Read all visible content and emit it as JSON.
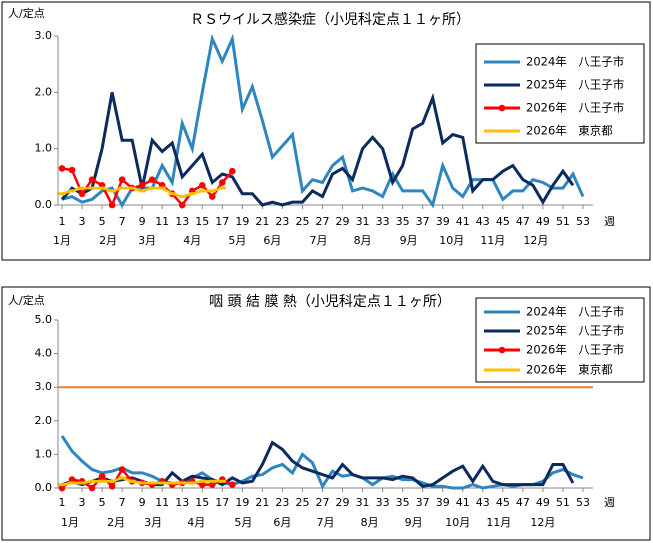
{
  "chart_data": [
    {
      "type": "line",
      "title": "ＲＳウイルス感染症（小児科定点１１ヶ所）",
      "y_label": "人/定点",
      "x_label": "週",
      "x": [
        1,
        2,
        3,
        4,
        5,
        6,
        7,
        8,
        9,
        10,
        11,
        12,
        13,
        14,
        15,
        16,
        17,
        18,
        19,
        20,
        21,
        22,
        23,
        24,
        25,
        26,
        27,
        28,
        29,
        30,
        31,
        32,
        33,
        34,
        35,
        36,
        37,
        38,
        39,
        40,
        41,
        42,
        43,
        44,
        45,
        46,
        47,
        48,
        49,
        50,
        51,
        52,
        53
      ],
      "xlim": [
        0.6,
        54
      ],
      "xticks": [
        1,
        3,
        5,
        7,
        9,
        11,
        13,
        15,
        17,
        19,
        21,
        23,
        25,
        27,
        29,
        31,
        33,
        35,
        37,
        39,
        41,
        43,
        45,
        47,
        49,
        51,
        53
      ],
      "ylim": [
        0,
        3
      ],
      "yticks": [
        {
          "value": 0,
          "label": "0.0"
        },
        {
          "value": 1,
          "label": "1.0"
        },
        {
          "value": 2,
          "label": "2.0"
        },
        {
          "value": 3,
          "label": "3.0"
        }
      ],
      "month_labels": [
        {
          "label": "1月",
          "week": 1
        },
        {
          "label": "2月",
          "week": 5.6
        },
        {
          "label": "3月",
          "week": 9.5
        },
        {
          "label": "4月",
          "week": 14
        },
        {
          "label": "5月",
          "week": 18.5
        },
        {
          "label": "6月",
          "week": 22
        },
        {
          "label": "7月",
          "week": 26.6
        },
        {
          "label": "8月",
          "week": 31
        },
        {
          "label": "9月",
          "week": 35.6
        },
        {
          "label": "10月",
          "week": 39.9
        },
        {
          "label": "11月",
          "week": 44
        },
        {
          "label": "12月",
          "week": 48.3
        }
      ],
      "grid": false,
      "legend": "upper right",
      "series": [
        {
          "name": "2024年　八王子市",
          "color": "#2E86C1",
          "marker": false,
          "values": [
            0.1,
            0.15,
            0.05,
            0.1,
            0.25,
            0.3,
            0.0,
            0.3,
            0.3,
            0.3,
            0.7,
            0.4,
            1.45,
            1.0,
            2.0,
            2.95,
            2.55,
            2.95,
            1.7,
            2.1,
            1.5,
            0.85,
            1.05,
            1.25,
            0.25,
            0.45,
            0.4,
            0.7,
            0.85,
            0.25,
            0.3,
            0.25,
            0.15,
            0.55,
            0.25,
            0.25,
            0.25,
            0.0,
            0.7,
            0.3,
            0.15,
            0.45,
            0.45,
            0.45,
            0.1,
            0.25,
            0.25,
            0.45,
            0.4,
            0.3,
            0.3,
            0.55,
            0.15
          ]
        },
        {
          "name": "2025年　八王子市",
          "color": "#0B2A5E",
          "marker": false,
          "values": [
            0.1,
            0.3,
            0.2,
            0.3,
            1.0,
            2.0,
            1.15,
            1.15,
            0.3,
            1.15,
            0.95,
            1.1,
            0.5,
            0.7,
            0.9,
            0.4,
            0.55,
            0.5,
            0.2,
            0.2,
            0.0,
            0.05,
            0.0,
            0.05,
            0.05,
            0.25,
            0.15,
            0.55,
            0.65,
            0.45,
            1.0,
            1.2,
            1.0,
            0.4,
            0.7,
            1.35,
            1.45,
            1.9,
            1.1,
            1.25,
            1.2,
            0.25,
            0.45,
            0.45,
            0.6,
            0.7,
            0.45,
            0.35,
            0.05,
            0.35,
            0.6,
            0.35,
            null
          ]
        },
        {
          "name": "2026年　八王子市",
          "color": "#FF0000",
          "marker": "circle",
          "values": [
            0.65,
            0.62,
            0.2,
            0.45,
            0.35,
            0.0,
            0.45,
            0.3,
            0.35,
            0.45,
            0.35,
            0.2,
            0.0,
            0.25,
            0.35,
            0.15,
            0.4,
            0.6,
            null,
            null,
            null,
            null,
            null,
            null,
            null,
            null,
            null,
            null,
            null,
            null,
            null,
            null,
            null,
            null,
            null,
            null,
            null,
            null,
            null,
            null,
            null,
            null,
            null,
            null,
            null,
            null,
            null,
            null,
            null,
            null,
            null,
            null,
            null
          ]
        },
        {
          "name": "2026年　東京都",
          "color": "#FFC000",
          "marker": "dash",
          "values": [
            0.2,
            0.25,
            0.3,
            0.3,
            0.3,
            0.25,
            0.3,
            0.3,
            0.25,
            0.3,
            0.3,
            0.2,
            0.15,
            0.2,
            0.25,
            0.25,
            0.3,
            null,
            null,
            null,
            null,
            null,
            null,
            null,
            null,
            null,
            null,
            null,
            null,
            null,
            null,
            null,
            null,
            null,
            null,
            null,
            null,
            null,
            null,
            null,
            null,
            null,
            null,
            null,
            null,
            null,
            null,
            null,
            null,
            null,
            null,
            null,
            null
          ]
        }
      ]
    },
    {
      "type": "line",
      "title": "咽 頭 結 膜 熱（小児科定点１１ヶ所）",
      "y_label": "人/定点",
      "x_label": "週",
      "x": [
        1,
        2,
        3,
        4,
        5,
        6,
        7,
        8,
        9,
        10,
        11,
        12,
        13,
        14,
        15,
        16,
        17,
        18,
        19,
        20,
        21,
        22,
        23,
        24,
        25,
        26,
        27,
        28,
        29,
        30,
        31,
        32,
        33,
        34,
        35,
        36,
        37,
        38,
        39,
        40,
        41,
        42,
        43,
        44,
        45,
        46,
        47,
        48,
        49,
        50,
        51,
        52,
        53
      ],
      "xlim": [
        0.6,
        54
      ],
      "xticks": [
        1,
        3,
        5,
        7,
        9,
        11,
        13,
        15,
        17,
        19,
        21,
        23,
        25,
        27,
        29,
        31,
        33,
        35,
        37,
        39,
        41,
        43,
        45,
        47,
        49,
        51,
        53
      ],
      "ylim": [
        0,
        5
      ],
      "yticks": [
        {
          "value": 0,
          "label": "0.0"
        },
        {
          "value": 1,
          "label": "1.0"
        },
        {
          "value": 2,
          "label": "2.0"
        },
        {
          "value": 3,
          "label": "3.0"
        },
        {
          "value": 4,
          "label": "4.0"
        },
        {
          "value": 5,
          "label": "5.0"
        }
      ],
      "reference_line": {
        "value": 3,
        "color": "#ED7D31"
      },
      "month_labels": [
        {
          "label": "1月",
          "week": 1.8
        },
        {
          "label": "2月",
          "week": 6.4
        },
        {
          "label": "3月",
          "week": 10.1
        },
        {
          "label": "4月",
          "week": 14.4
        },
        {
          "label": "5月",
          "week": 19.1
        },
        {
          "label": "6月",
          "week": 23
        },
        {
          "label": "7月",
          "week": 27.3
        },
        {
          "label": "8月",
          "week": 31.7
        },
        {
          "label": "9月",
          "week": 36.1
        },
        {
          "label": "10月",
          "week": 40.5
        },
        {
          "label": "11月",
          "week": 44.6
        },
        {
          "label": "12月",
          "week": 49
        }
      ],
      "grid": false,
      "legend": "upper right",
      "series": [
        {
          "name": "2024年　八王子市",
          "color": "#2E86C1",
          "marker": false,
          "values": [
            1.55,
            1.1,
            0.8,
            0.55,
            0.45,
            0.5,
            0.6,
            0.45,
            0.45,
            0.35,
            0.2,
            0.15,
            0.15,
            0.3,
            0.45,
            0.25,
            0.15,
            0.1,
            0.2,
            0.35,
            0.4,
            0.6,
            0.7,
            0.45,
            1.0,
            0.75,
            0.05,
            0.5,
            0.35,
            0.4,
            0.3,
            0.1,
            0.3,
            0.35,
            0.25,
            0.25,
            0.15,
            0.05,
            0.05,
            0.0,
            0.0,
            0.1,
            0.0,
            0.05,
            0.1,
            0.05,
            0.1,
            0.1,
            0.2,
            0.45,
            0.55,
            0.4,
            0.3
          ]
        },
        {
          "name": "2025年　八王子市",
          "color": "#0B2A5E",
          "marker": false,
          "values": [
            0.1,
            0.2,
            0.1,
            0.2,
            0.3,
            0.2,
            0.25,
            0.3,
            0.2,
            0.1,
            0.1,
            0.45,
            0.2,
            0.35,
            0.3,
            0.25,
            0.1,
            0.3,
            0.15,
            0.2,
            0.7,
            1.35,
            1.15,
            0.8,
            0.6,
            0.5,
            0.4,
            0.3,
            0.7,
            0.4,
            0.3,
            0.3,
            0.3,
            0.25,
            0.35,
            0.3,
            0.05,
            0.1,
            0.3,
            0.5,
            0.65,
            0.2,
            0.65,
            0.2,
            0.1,
            0.1,
            0.1,
            0.1,
            0.1,
            0.7,
            0.7,
            0.15,
            null
          ]
        },
        {
          "name": "2026年　八王子市",
          "color": "#FF0000",
          "marker": "circle",
          "values": [
            0.0,
            0.25,
            0.2,
            0.0,
            0.35,
            0.05,
            0.55,
            0.2,
            0.15,
            0.1,
            0.2,
            0.1,
            0.15,
            0.2,
            0.1,
            0.1,
            0.25,
            0.1,
            null,
            null,
            null,
            null,
            null,
            null,
            null,
            null,
            null,
            null,
            null,
            null,
            null,
            null,
            null,
            null,
            null,
            null,
            null,
            null,
            null,
            null,
            null,
            null,
            null,
            null,
            null,
            null,
            null,
            null,
            null,
            null,
            null,
            null,
            null
          ]
        },
        {
          "name": "2026年　東京都",
          "color": "#FFC000",
          "marker": "dash",
          "values": [
            0.1,
            0.15,
            0.15,
            0.2,
            0.2,
            0.2,
            0.3,
            0.2,
            0.15,
            0.15,
            0.15,
            0.15,
            0.15,
            0.15,
            0.2,
            0.2,
            0.2,
            null,
            null,
            null,
            null,
            null,
            null,
            null,
            null,
            null,
            null,
            null,
            null,
            null,
            null,
            null,
            null,
            null,
            null,
            null,
            null,
            null,
            null,
            null,
            null,
            null,
            null,
            null,
            null,
            null,
            null,
            null,
            null,
            null,
            null,
            null,
            null
          ]
        }
      ]
    }
  ]
}
